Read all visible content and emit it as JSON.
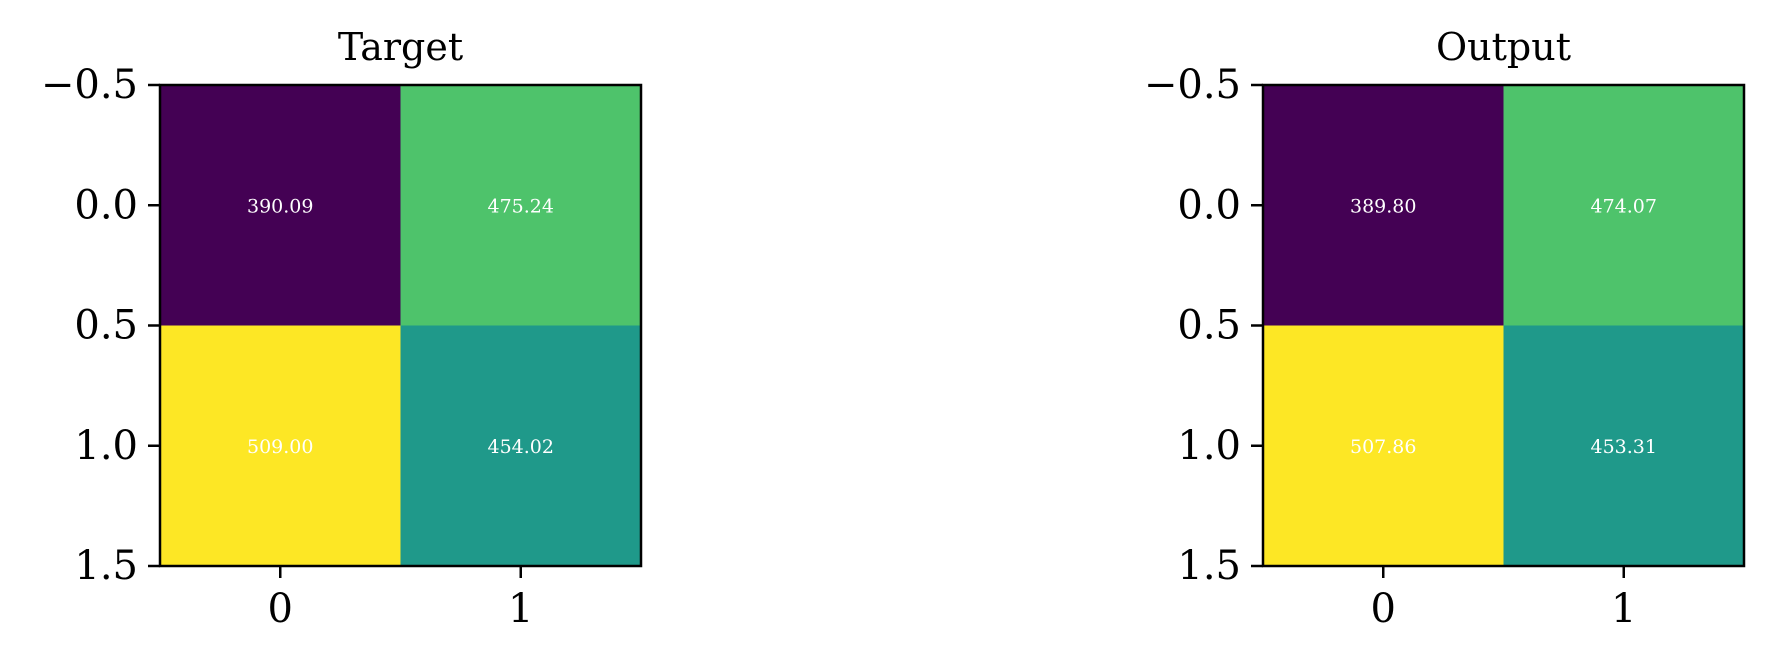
{
  "chart_data": [
    {
      "type": "heatmap",
      "title": "Target",
      "xticks": [
        "0",
        "1"
      ],
      "yticks": [
        "−0.5",
        "0.0",
        "0.5",
        "1.0",
        "1.5"
      ],
      "xlim": [
        -0.5,
        1.5
      ],
      "ylim": [
        1.5,
        -0.5
      ],
      "colormap": "viridis",
      "values": [
        [
          390.09,
          475.24
        ],
        [
          509.0,
          454.02
        ]
      ],
      "cell_labels": [
        [
          "390.09",
          "475.24"
        ],
        [
          "509.00",
          "454.02"
        ]
      ],
      "cell_colors": [
        [
          "#440154",
          "#4ec36b"
        ],
        [
          "#fde725",
          "#1f998a"
        ]
      ]
    },
    {
      "type": "heatmap",
      "title": "Output",
      "xticks": [
        "0",
        "1"
      ],
      "yticks": [
        "−0.5",
        "0.0",
        "0.5",
        "1.0",
        "1.5"
      ],
      "xlim": [
        -0.5,
        1.5
      ],
      "ylim": [
        1.5,
        -0.5
      ],
      "colormap": "viridis",
      "values": [
        [
          389.8,
          474.07
        ],
        [
          507.86,
          453.31
        ]
      ],
      "cell_labels": [
        [
          "389.80",
          "474.07"
        ],
        [
          "507.86",
          "453.31"
        ]
      ],
      "cell_colors": [
        [
          "#440154",
          "#4ec36b"
        ],
        [
          "#fde725",
          "#1f998a"
        ]
      ]
    }
  ]
}
